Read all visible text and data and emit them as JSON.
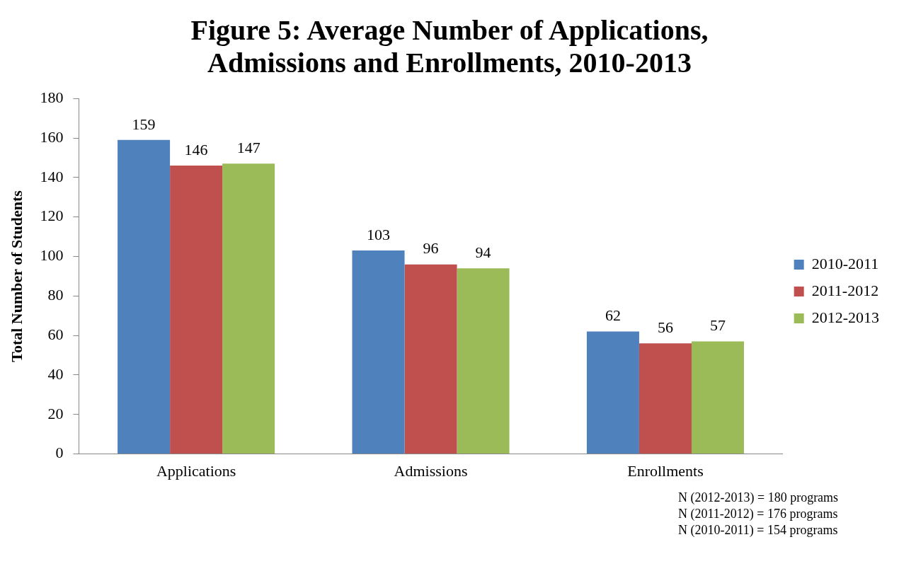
{
  "chart_data": {
    "type": "bar",
    "title": "Figure 5: Average Number of Applications, Admissions and Enrollments, 2010-2013",
    "ylabel": "Total Number of Students",
    "categories": [
      "Applications",
      "Admissions",
      "Enrollments"
    ],
    "series": [
      {
        "name": "2010-2011",
        "color": "#4f81bd",
        "values": [
          159,
          103,
          62
        ]
      },
      {
        "name": "2011-2012",
        "color": "#c0504d",
        "values": [
          146,
          96,
          56
        ]
      },
      {
        "name": "2012-2013",
        "color": "#9bbb59",
        "values": [
          147,
          94,
          57
        ]
      }
    ],
    "ylim": [
      0,
      180
    ],
    "yticks": [
      0,
      20,
      40,
      60,
      80,
      100,
      120,
      140,
      160,
      180
    ],
    "grid": false,
    "legend": "right",
    "data_labels": true,
    "annotations": [
      "N (2012-2013) = 180 programs",
      "N (2011-2012) = 176 programs",
      "N (2010-2011) = 154 programs"
    ]
  }
}
